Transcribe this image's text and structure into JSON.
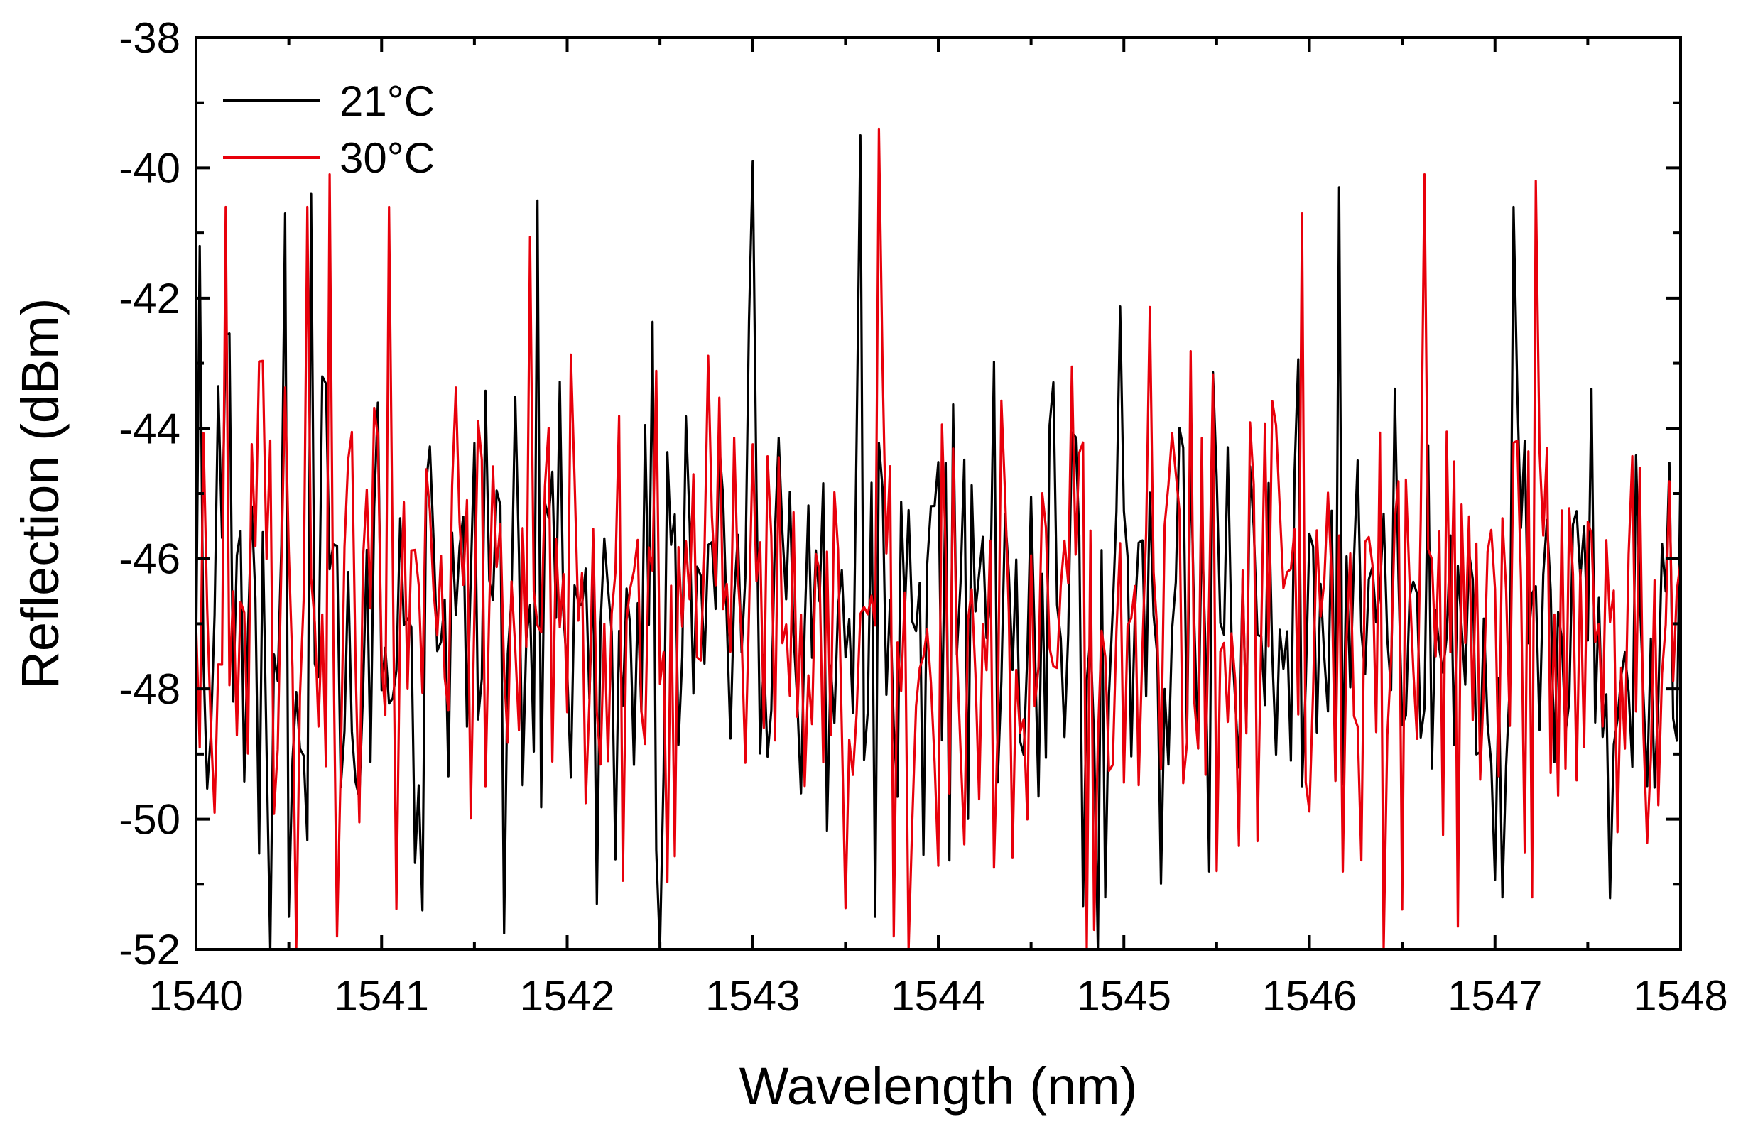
{
  "chart_data": {
    "type": "line",
    "title": "",
    "xlabel": "Wavelength (nm)",
    "ylabel": "Reflection (dBm)",
    "xlim": [
      1540,
      1548
    ],
    "ylim": [
      -52,
      -38
    ],
    "xticks": [
      1540,
      1541,
      1542,
      1543,
      1544,
      1545,
      1546,
      1547,
      1548
    ],
    "yticks": [
      -38,
      -40,
      -42,
      -44,
      -46,
      -48,
      -50,
      -52
    ],
    "xtick_labels": [
      "1540",
      "1541",
      "1542",
      "1543",
      "1544",
      "1545",
      "1546",
      "1547",
      "1548"
    ],
    "ytick_labels": [
      "-38",
      "-40",
      "-42",
      "-44",
      "-46",
      "-48",
      "-50",
      "-52"
    ],
    "grid": false,
    "legend_position": "top-left",
    "series": [
      {
        "name": "21°C",
        "color": "#000000",
        "sample_step_nm": 0.02,
        "x_start": 1540,
        "noise_seed": 21,
        "noise_mean": -47.0,
        "noise_spread": 5.4,
        "peaks": [
          {
            "x": 1540.02,
            "y": -41.2
          },
          {
            "x": 1540.48,
            "y": -40.7
          },
          {
            "x": 1540.62,
            "y": -40.4
          },
          {
            "x": 1541.85,
            "y": -40.5
          },
          {
            "x": 1543.0,
            "y": -39.9
          },
          {
            "x": 1543.58,
            "y": -39.5
          },
          {
            "x": 1546.15,
            "y": -40.3
          },
          {
            "x": 1547.1,
            "y": -40.6
          },
          {
            "x": 1540.5,
            "y": -51.5
          },
          {
            "x": 1541.22,
            "y": -51.4
          },
          {
            "x": 1542.15,
            "y": -51.3
          },
          {
            "x": 1543.65,
            "y": -51.5
          },
          {
            "x": 1544.9,
            "y": -51.2
          },
          {
            "x": 1547.05,
            "y": -51.2
          }
        ]
      },
      {
        "name": "30°C",
        "color": "#e8000b",
        "sample_step_nm": 0.02,
        "x_start": 1540,
        "noise_seed": 30,
        "noise_mean": -46.9,
        "noise_spread": 5.4,
        "peaks": [
          {
            "x": 1540.15,
            "y": -40.6
          },
          {
            "x": 1540.6,
            "y": -40.6
          },
          {
            "x": 1540.72,
            "y": -40.1
          },
          {
            "x": 1541.05,
            "y": -40.6
          },
          {
            "x": 1543.68,
            "y": -39.4
          },
          {
            "x": 1545.95,
            "y": -40.7
          },
          {
            "x": 1546.62,
            "y": -40.1
          },
          {
            "x": 1547.22,
            "y": -40.2
          },
          {
            "x": 1540.55,
            "y": -52.0
          },
          {
            "x": 1540.75,
            "y": -51.8
          },
          {
            "x": 1543.85,
            "y": -52.0
          },
          {
            "x": 1543.75,
            "y": -51.8
          },
          {
            "x": 1544.85,
            "y": -51.7
          },
          {
            "x": 1547.2,
            "y": -51.2
          }
        ]
      }
    ]
  }
}
